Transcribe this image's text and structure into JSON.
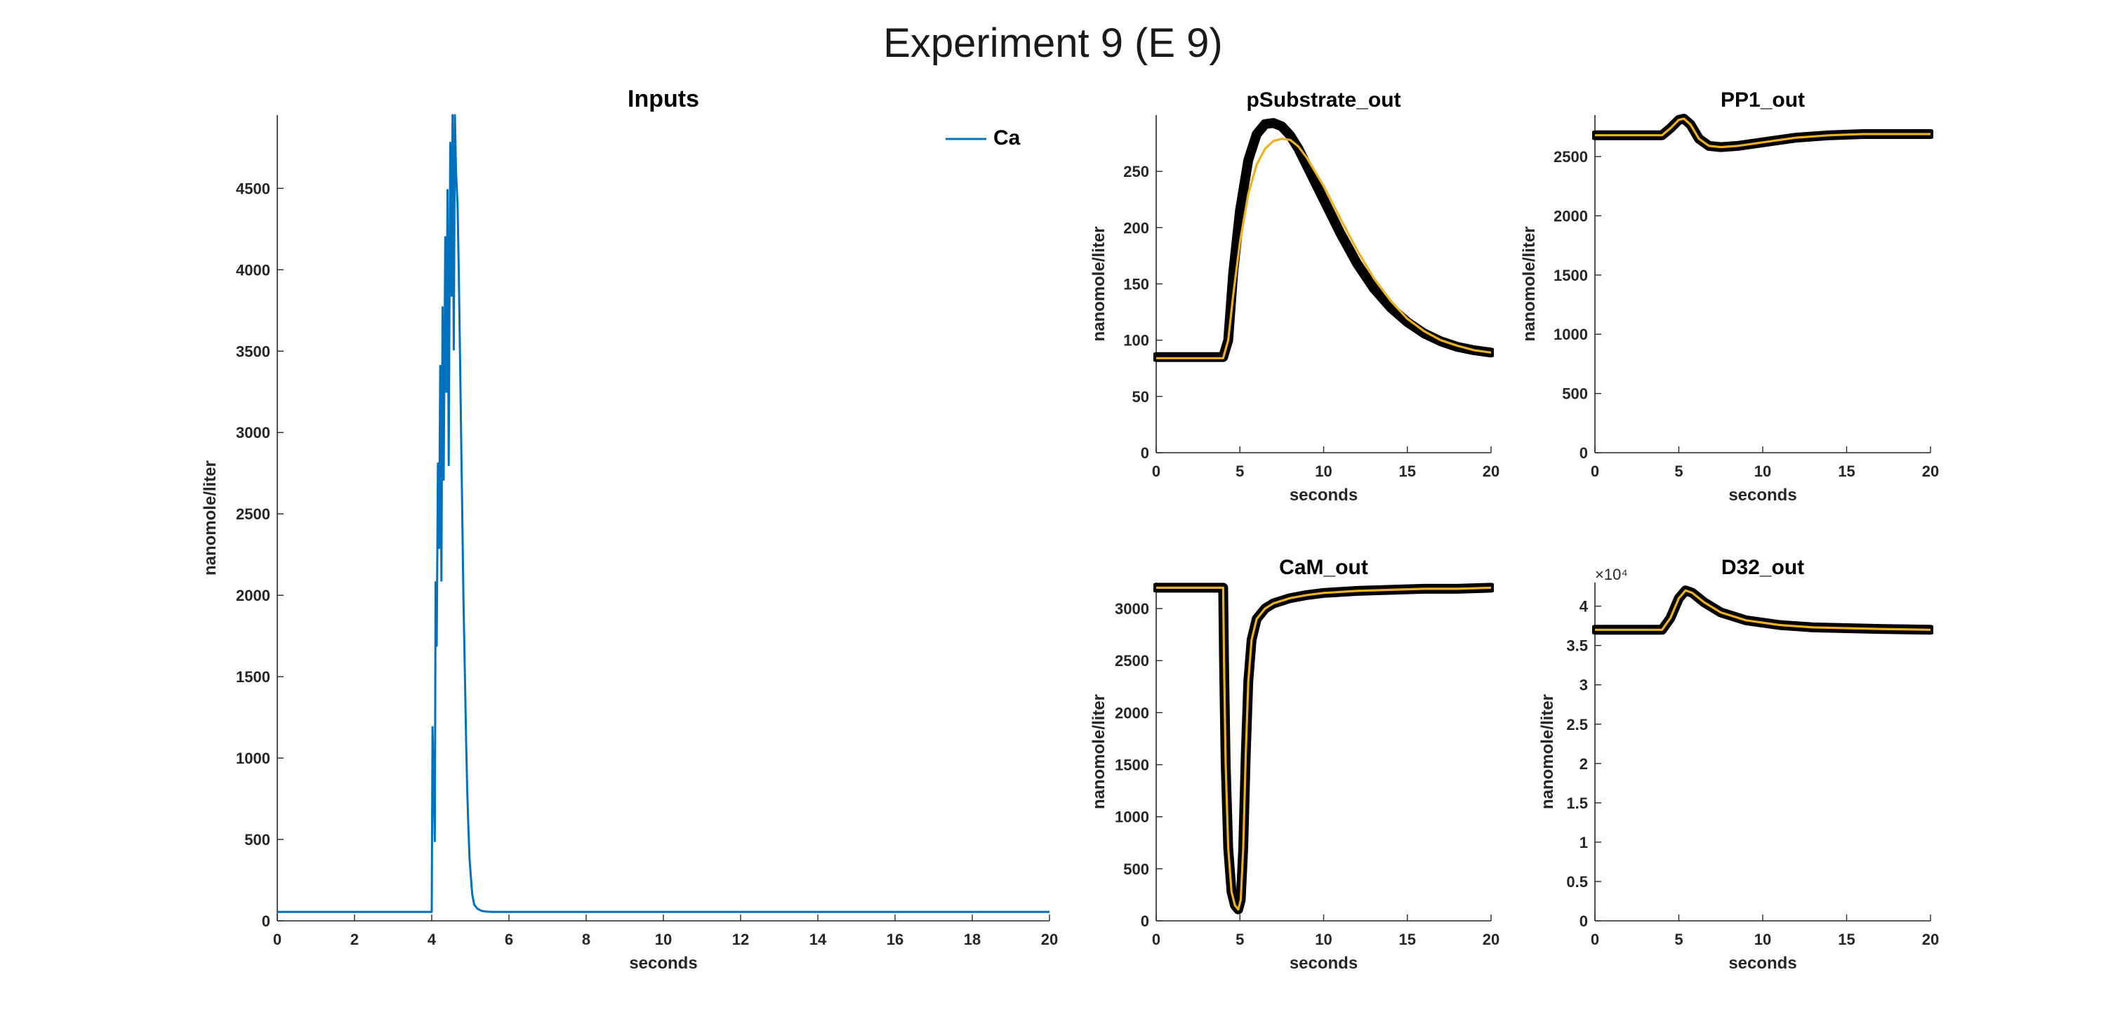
{
  "figure": {
    "title": "Experiment 9  (E 9)"
  },
  "colors": {
    "axis": "#262626",
    "input": "#0072BD",
    "sim": "#EDB120",
    "data": "#000000"
  },
  "chart_data": [
    {
      "id": "inputs",
      "type": "line",
      "title": "Inputs",
      "xlabel": "seconds",
      "ylabel": "nanomole/liter",
      "xlim": [
        0,
        20
      ],
      "ylim": [
        0,
        4950
      ],
      "xticks": [
        0,
        2,
        4,
        6,
        8,
        10,
        12,
        14,
        16,
        18,
        20
      ],
      "yticks": [
        0,
        500,
        1000,
        1500,
        2000,
        2500,
        3000,
        3500,
        4000,
        4500
      ],
      "legend": {
        "position": "top-right",
        "entries": [
          "Ca"
        ]
      },
      "series": [
        {
          "name": "Ca",
          "role": "input",
          "x": [
            0,
            4.0,
            4.02,
            4.08,
            4.1,
            4.13,
            4.16,
            4.19,
            4.22,
            4.25,
            4.28,
            4.31,
            4.35,
            4.38,
            4.41,
            4.44,
            4.48,
            4.51,
            4.54,
            4.57,
            4.6,
            4.63,
            4.67,
            4.7,
            4.73,
            4.76,
            4.79,
            4.82,
            4.86,
            4.89,
            4.92,
            4.95,
            4.98,
            5.02,
            5.05,
            5.1,
            5.18,
            5.28,
            5.4,
            5.55,
            5.7,
            5.9,
            6.1,
            20
          ],
          "y": [
            55,
            55,
            1190,
            490,
            2080,
            1690,
            2810,
            2290,
            3410,
            2090,
            3770,
            2710,
            4200,
            3250,
            4490,
            2800,
            4780,
            3840,
            4950,
            3510,
            4950,
            4600,
            4400,
            4000,
            3500,
            3000,
            2500,
            2000,
            1500,
            1100,
            800,
            560,
            380,
            250,
            160,
            100,
            75,
            62,
            57,
            55,
            55,
            55,
            55,
            55
          ]
        }
      ]
    },
    {
      "id": "psubstrate",
      "type": "line",
      "title": "pSubstrate_out",
      "xlabel": "seconds",
      "ylabel": "nanomole/liter",
      "xlim": [
        0,
        20
      ],
      "ylim": [
        0,
        300
      ],
      "xticks": [
        0,
        5,
        10,
        15,
        20
      ],
      "yticks": [
        0,
        50,
        100,
        150,
        200,
        250
      ],
      "series": [
        {
          "role": "data",
          "x": [
            0,
            4.0,
            4.3,
            4.6,
            5.0,
            5.5,
            6.0,
            6.5,
            7.0,
            7.5,
            8.0,
            8.5,
            9.0,
            10.0,
            11.0,
            12.0,
            13.0,
            14.0,
            15.0,
            16.0,
            17.0,
            18.0,
            19.0,
            20.0
          ],
          "y": [
            85,
            85,
            100,
            160,
            215,
            260,
            283,
            292,
            293,
            290,
            282,
            270,
            255,
            225,
            195,
            168,
            146,
            129,
            116,
            106,
            99,
            94,
            91,
            89
          ]
        },
        {
          "role": "simulation",
          "x": [
            0,
            4.0,
            4.3,
            4.6,
            5.0,
            5.5,
            6.0,
            6.5,
            7.0,
            7.5,
            8.0,
            8.5,
            9.0,
            10.0,
            11.0,
            12.0,
            13.0,
            14.0,
            15.0,
            16.0,
            17.0,
            18.0,
            19.0,
            20.0
          ],
          "y": [
            84,
            84,
            100,
            140,
            187,
            230,
            256,
            270,
            277,
            279,
            278,
            272,
            262,
            237,
            208,
            180,
            155,
            135,
            119,
            108,
            100,
            95,
            91,
            89
          ]
        }
      ]
    },
    {
      "id": "pp1",
      "type": "line",
      "title": "PP1_out",
      "xlabel": "seconds",
      "ylabel": "nanomole/liter",
      "xlim": [
        0,
        20
      ],
      "ylim": [
        0,
        2850
      ],
      "xticks": [
        0,
        5,
        10,
        15,
        20
      ],
      "yticks": [
        0,
        500,
        1000,
        1500,
        2000,
        2500
      ],
      "series": [
        {
          "role": "data",
          "x": [
            0,
            4.0,
            4.5,
            5.0,
            5.3,
            5.7,
            6.2,
            6.8,
            7.5,
            8.5,
            10.0,
            12.0,
            14.0,
            16.0,
            18.0,
            20.0
          ],
          "y": [
            2680,
            2680,
            2740,
            2810,
            2820,
            2770,
            2650,
            2590,
            2580,
            2590,
            2620,
            2660,
            2680,
            2690,
            2690,
            2690
          ]
        },
        {
          "role": "simulation",
          "x": [
            0,
            4.0,
            4.5,
            5.0,
            5.3,
            5.7,
            6.2,
            6.8,
            7.5,
            8.5,
            10.0,
            12.0,
            14.0,
            16.0,
            18.0,
            20.0
          ],
          "y": [
            2680,
            2680,
            2740,
            2810,
            2820,
            2770,
            2650,
            2590,
            2580,
            2590,
            2620,
            2660,
            2680,
            2690,
            2690,
            2690
          ]
        }
      ]
    },
    {
      "id": "cam",
      "type": "line",
      "title": "CaM_out",
      "xlabel": "seconds",
      "ylabel": "nanomole/liter",
      "xlim": [
        0,
        20
      ],
      "ylim": [
        0,
        3250
      ],
      "xticks": [
        0,
        5,
        10,
        15,
        20
      ],
      "yticks": [
        0,
        500,
        1000,
        1500,
        2000,
        2500,
        3000
      ],
      "series": [
        {
          "role": "data",
          "x": [
            0,
            4.0,
            4.05,
            4.15,
            4.3,
            4.5,
            4.7,
            4.9,
            5.05,
            5.2,
            5.35,
            5.5,
            5.7,
            6.0,
            6.5,
            7.0,
            8.0,
            9.0,
            10.0,
            12.0,
            14.0,
            16.0,
            18.0,
            20.0
          ],
          "y": [
            3200,
            3200,
            2500,
            1500,
            700,
            280,
            150,
            110,
            200,
            700,
            1600,
            2300,
            2700,
            2900,
            3000,
            3050,
            3100,
            3130,
            3150,
            3170,
            3180,
            3190,
            3190,
            3200
          ]
        },
        {
          "role": "simulation",
          "x": [
            0,
            4.0,
            4.05,
            4.15,
            4.3,
            4.5,
            4.7,
            4.9,
            5.05,
            5.2,
            5.35,
            5.5,
            5.7,
            6.0,
            6.5,
            7.0,
            8.0,
            9.0,
            10.0,
            12.0,
            14.0,
            16.0,
            18.0,
            20.0
          ],
          "y": [
            3200,
            3200,
            2500,
            1500,
            700,
            280,
            150,
            110,
            200,
            700,
            1600,
            2300,
            2700,
            2900,
            3000,
            3050,
            3100,
            3130,
            3150,
            3170,
            3180,
            3190,
            3190,
            3200
          ]
        }
      ]
    },
    {
      "id": "d32",
      "type": "line",
      "title": "D32_out",
      "xlabel": "seconds",
      "ylabel": "nanomole/liter",
      "exponent_label": "×10⁴",
      "xlim": [
        0,
        20
      ],
      "ylim": [
        0,
        4.3
      ],
      "xticks": [
        0,
        5,
        10,
        15,
        20
      ],
      "yticks": [
        0,
        0.5,
        1,
        1.5,
        2,
        2.5,
        3,
        3.5,
        4
      ],
      "series": [
        {
          "role": "data",
          "x": [
            0,
            4.0,
            4.5,
            5.0,
            5.4,
            5.8,
            6.5,
            7.5,
            9.0,
            11.0,
            13.0,
            15.0,
            17.0,
            20.0
          ],
          "y": [
            3.7,
            3.7,
            3.85,
            4.1,
            4.2,
            4.17,
            4.05,
            3.92,
            3.82,
            3.76,
            3.73,
            3.72,
            3.71,
            3.7
          ]
        },
        {
          "role": "simulation",
          "x": [
            0,
            4.0,
            4.5,
            5.0,
            5.4,
            5.8,
            6.5,
            7.5,
            9.0,
            11.0,
            13.0,
            15.0,
            17.0,
            20.0
          ],
          "y": [
            3.7,
            3.7,
            3.85,
            4.1,
            4.2,
            4.17,
            4.05,
            3.92,
            3.82,
            3.76,
            3.73,
            3.72,
            3.71,
            3.7
          ]
        }
      ]
    }
  ]
}
